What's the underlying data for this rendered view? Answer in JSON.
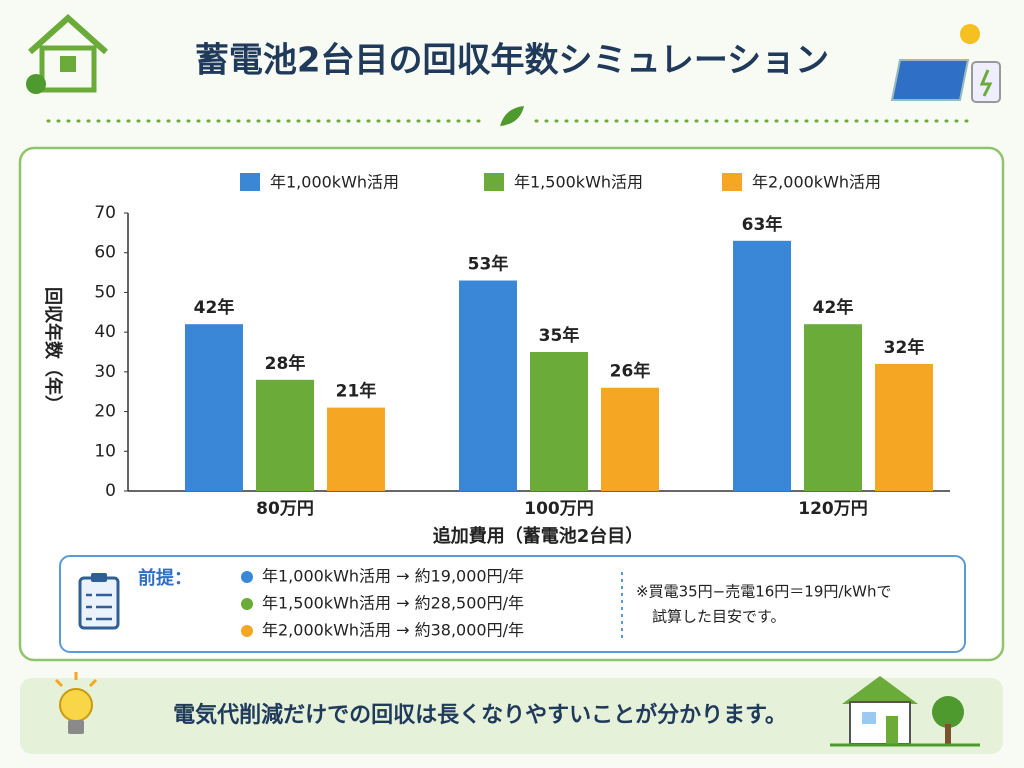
{
  "header": {
    "title": "蓄電池2台目の回収年数シミュレーション"
  },
  "chart_data": {
    "type": "bar",
    "categories": [
      "80万円",
      "100万円",
      "120万円"
    ],
    "series": [
      {
        "name": "年1,000kWh活用",
        "color": "#3a87d8",
        "values": [
          42,
          53,
          63
        ],
        "value_labels": [
          "42年",
          "53年",
          "63年"
        ]
      },
      {
        "name": "年1,500kWh活用",
        "color": "#6aab3a",
        "values": [
          28,
          35,
          42
        ],
        "value_labels": [
          "28年",
          "35年",
          "42年"
        ]
      },
      {
        "name": "年2,000kWh活用",
        "color": "#f5a623",
        "values": [
          21,
          26,
          32
        ],
        "value_labels": [
          "21年",
          "26年",
          "32年"
        ]
      }
    ],
    "ylim": [
      0,
      70
    ],
    "yticks": [
      0,
      10,
      20,
      30,
      40,
      50,
      60,
      70
    ],
    "ylabel": "回収年数（年）",
    "xlabel": "追加費用（蓄電池2台目）",
    "legend": "top"
  },
  "premise": {
    "label": "前提：",
    "items": [
      "年1,000kWh活用 → 約19,000円/年",
      "年1,500kWh活用 → 約28,500円/年",
      "年2,000kWh活用 → 約38,000円/年"
    ],
    "note": [
      "※買電35円−売電16円＝19円/kWhで",
      "試算した目安です。"
    ]
  },
  "footer": {
    "text": "電気代削減だけでの回収は長くなりやすいことが分かります。"
  }
}
